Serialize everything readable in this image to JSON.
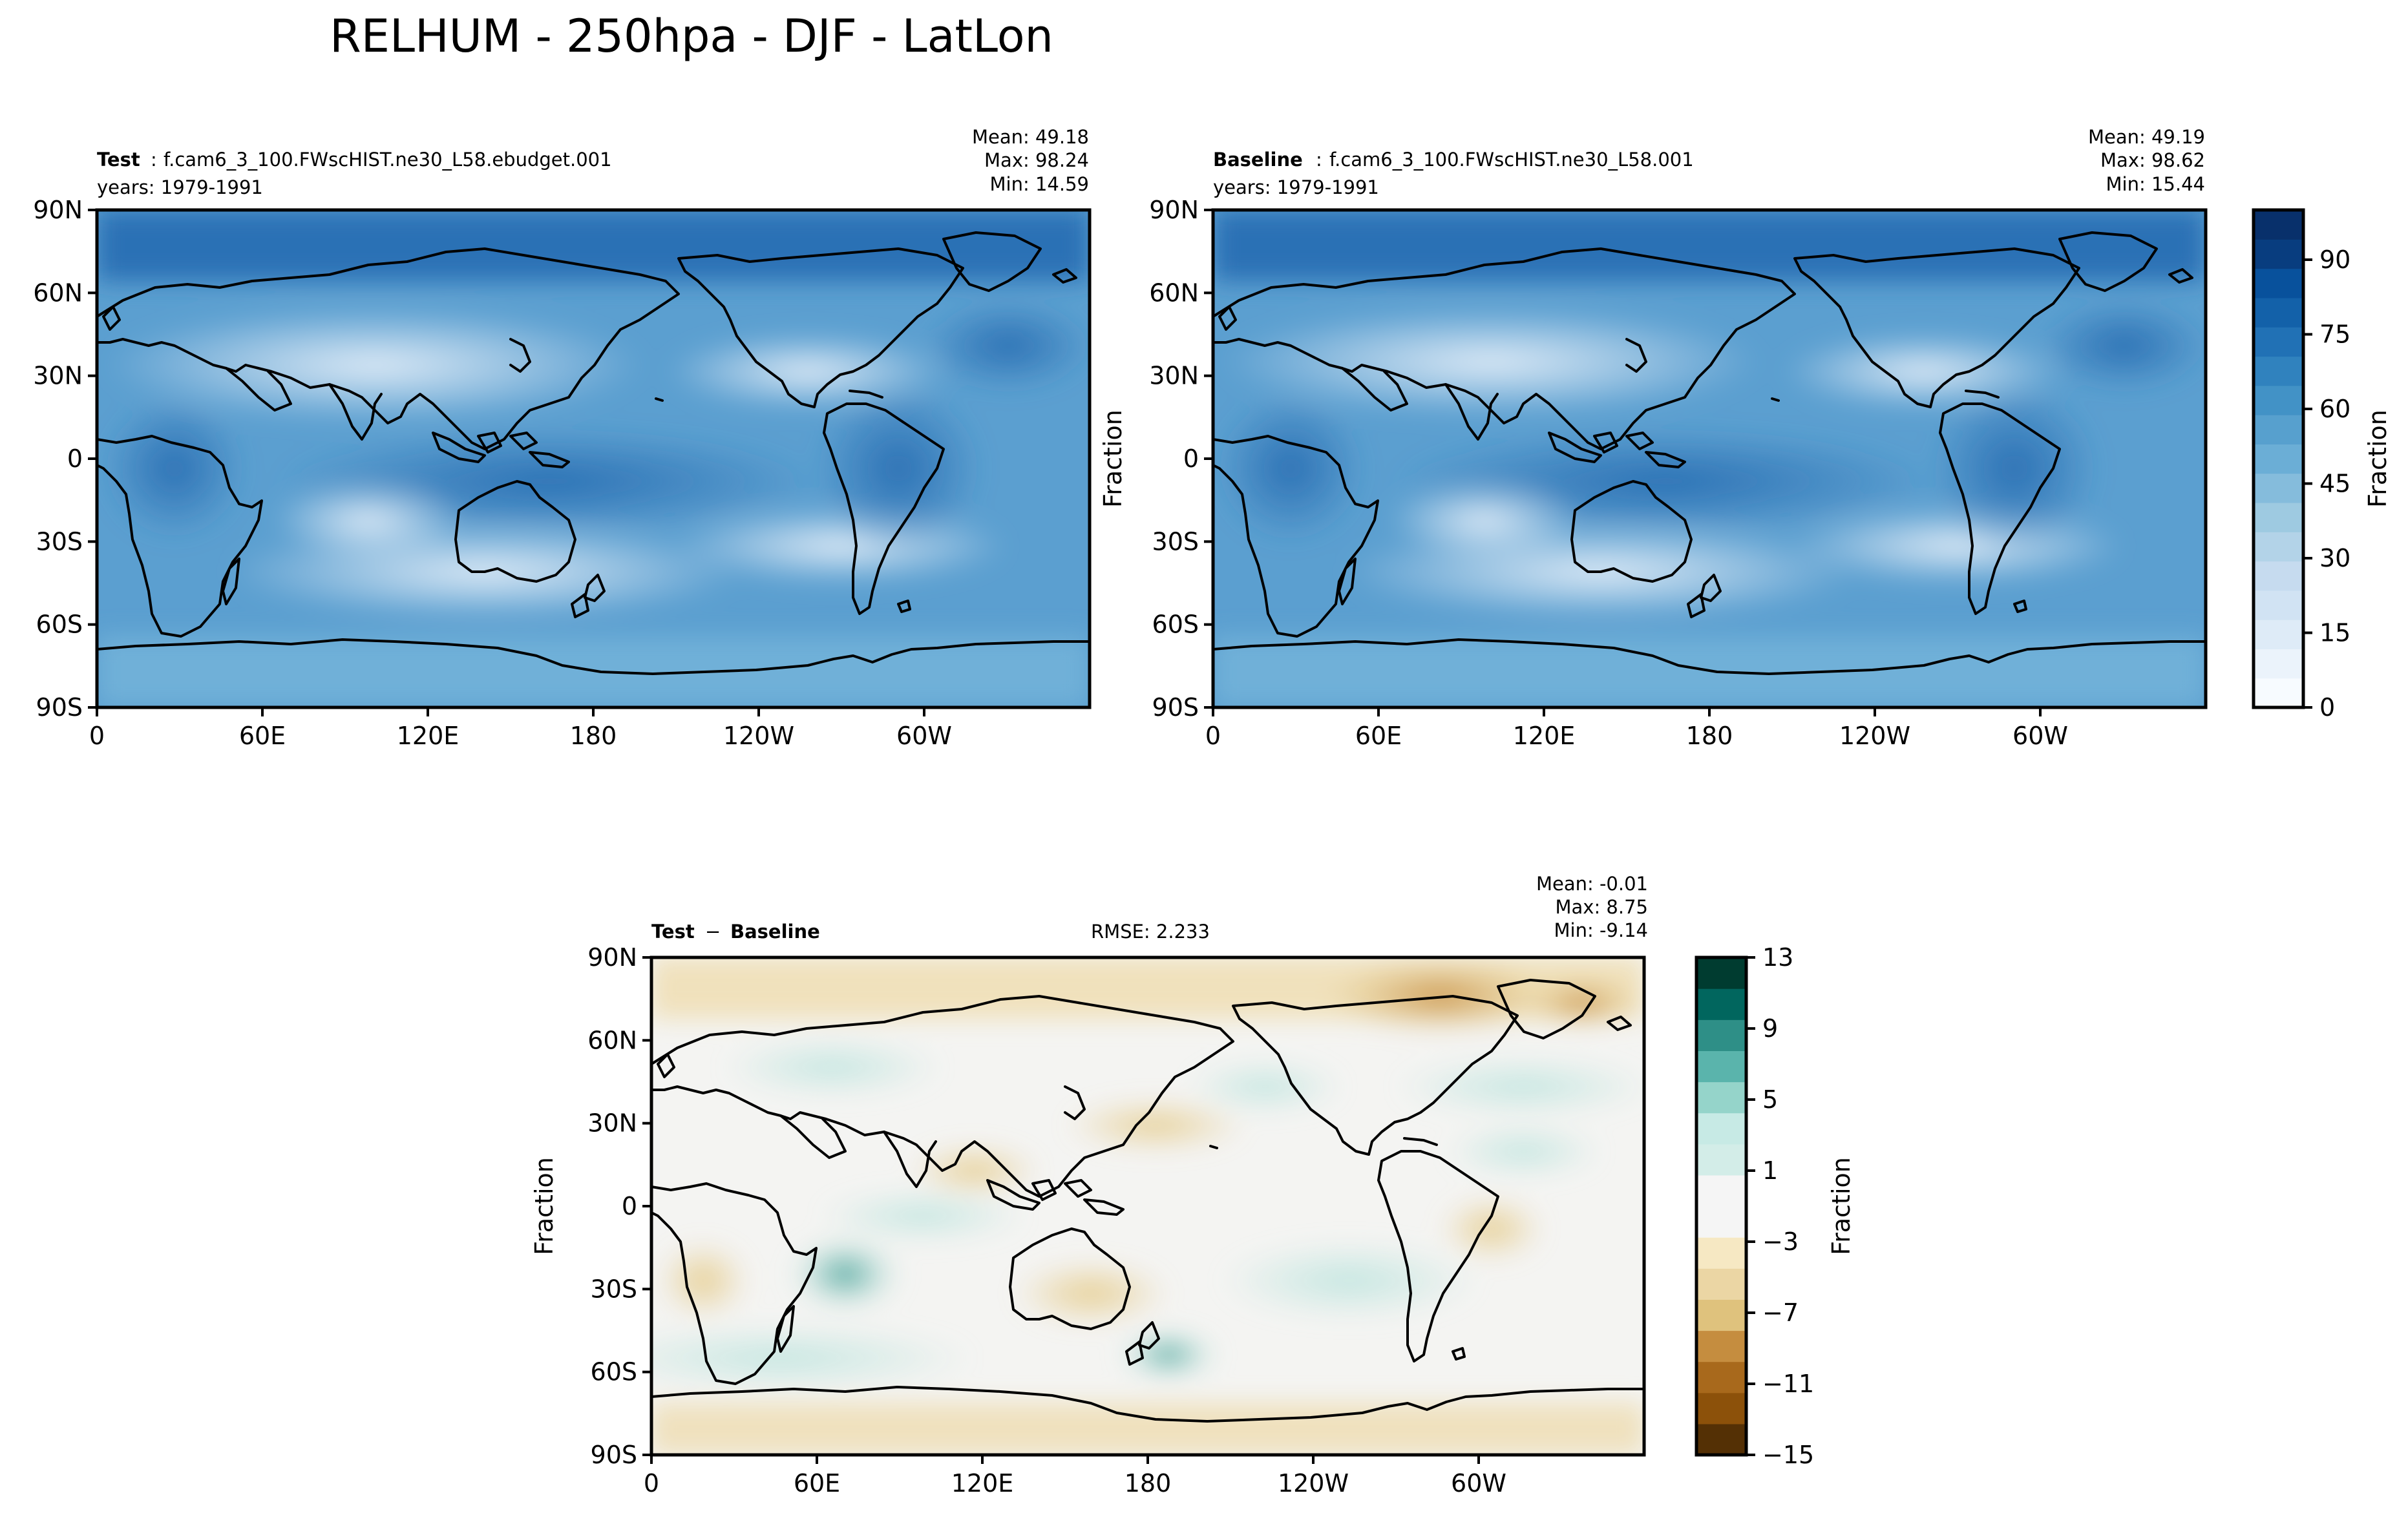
{
  "figure_title": "RELHUM - 250hpa - DJF - LatLon",
  "chart_data": [
    {
      "type": "heatmap",
      "panel": "test",
      "label_bold": "Test",
      "label_sep": ":",
      "case": "f.cam6_3_100.FWscHIST.ne30_L58.ebudget.001",
      "years": "years: 1979-1991",
      "stats": [
        "Mean: 49.18",
        "Max: 98.24",
        "Min: 14.59"
      ],
      "ylabel": "",
      "xlim": [
        0,
        360
      ],
      "ylim": [
        -90,
        90
      ],
      "x_ticks": [
        "0",
        "60E",
        "120E",
        "180",
        "120W",
        "60W"
      ],
      "y_ticks": [
        "90N",
        "60N",
        "30N",
        "0",
        "30S",
        "60S",
        "90S"
      ],
      "colormap": "Blues",
      "value_range": [
        0,
        100
      ]
    },
    {
      "type": "heatmap",
      "panel": "baseline",
      "label_bold": "Baseline",
      "label_sep": ":",
      "case": "f.cam6_3_100.FWscHIST.ne30_L58.001",
      "years": "years: 1979-1991",
      "stats": [
        "Mean: 49.19",
        "Max: 98.62",
        "Min: 15.44"
      ],
      "ylabel": "Fraction",
      "xlim": [
        0,
        360
      ],
      "ylim": [
        -90,
        90
      ],
      "x_ticks": [
        "0",
        "60E",
        "120E",
        "180",
        "120W",
        "60W"
      ],
      "y_ticks": [
        "90N",
        "60N",
        "30N",
        "0",
        "30S",
        "60S",
        "90S"
      ],
      "colormap": "Blues",
      "value_range": [
        0,
        100
      ],
      "colorbar": {
        "label": "Fraction",
        "ticks": [
          "0",
          "15",
          "30",
          "45",
          "60",
          "75",
          "90"
        ],
        "tick_values": [
          0,
          15,
          30,
          45,
          60,
          75,
          90
        ],
        "range": [
          0,
          100
        ],
        "colors": [
          "#f7fbff",
          "#ebf3fb",
          "#deebf7",
          "#d1e3f3",
          "#c6dbef",
          "#b3d3e8",
          "#9ecae1",
          "#85bcdc",
          "#6baed6",
          "#57a0ce",
          "#4292c6",
          "#3082be",
          "#2171b5",
          "#1361a9",
          "#08519c",
          "#083d7f",
          "#08306b"
        ]
      }
    },
    {
      "type": "heatmap",
      "panel": "difference",
      "label_bold_a": "Test",
      "label_minus": "−",
      "label_bold_b": "Baseline",
      "rmse": "RMSE: 2.233",
      "stats": [
        "Mean: -0.01",
        "Max:  8.75",
        "Min: -9.14"
      ],
      "ylabel": "Fraction",
      "xlim": [
        0,
        360
      ],
      "ylim": [
        -90,
        90
      ],
      "x_ticks": [
        "0",
        "60E",
        "120E",
        "180",
        "120W",
        "60W"
      ],
      "y_ticks": [
        "90N",
        "60N",
        "30N",
        "0",
        "30S",
        "60S",
        "90S"
      ],
      "colormap": "BrBG",
      "value_range": [
        -15,
        13
      ],
      "colorbar": {
        "label": "Fraction",
        "ticks": [
          "−15",
          "−11",
          "−7",
          "−3",
          "1",
          "5",
          "9",
          "13"
        ],
        "tick_values": [
          -15,
          -11,
          -7,
          -3,
          1,
          5,
          9,
          13
        ],
        "range": [
          -15,
          13
        ],
        "colors": [
          "#543005",
          "#8c510a",
          "#a8691c",
          "#c58d3f",
          "#dfc27d",
          "#ebd6a4",
          "#f6e8c3",
          "#f5f5f5",
          "#f5f5f5",
          "#d3ede8",
          "#c7eae5",
          "#95d4ca",
          "#5ab4ac",
          "#2e8f87",
          "#01665e",
          "#003c30"
        ]
      }
    }
  ]
}
